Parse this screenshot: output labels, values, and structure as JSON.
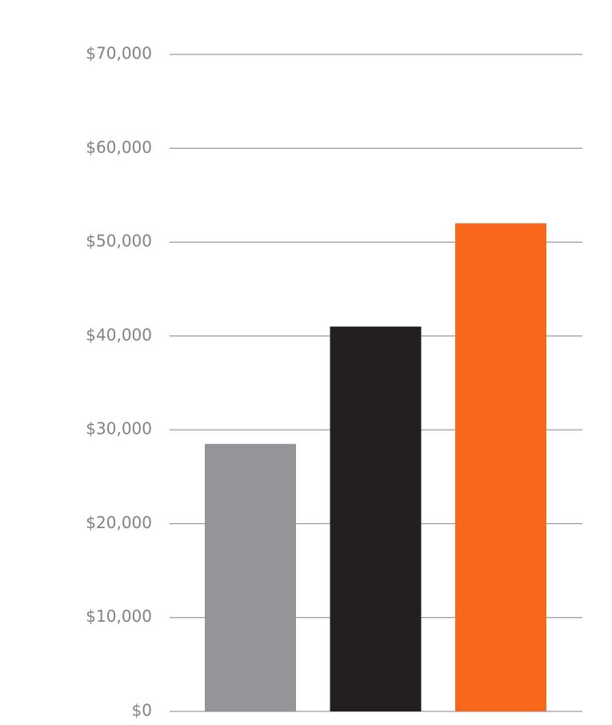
{
  "chart_data": {
    "type": "bar",
    "categories": [
      null,
      null,
      null
    ],
    "values": [
      28500,
      41000,
      52000
    ],
    "colors": [
      "#939598",
      "#231f20",
      "#f9671d"
    ],
    "ylim": [
      0,
      70000
    ],
    "yticks": [
      {
        "value": 0,
        "label": "$0"
      },
      {
        "value": 10000,
        "label": "$10,000"
      },
      {
        "value": 20000,
        "label": "$20,000"
      },
      {
        "value": 30000,
        "label": "$30,000"
      },
      {
        "value": 40000,
        "label": "$40,000"
      },
      {
        "value": 50000,
        "label": "$50,000"
      },
      {
        "value": 60000,
        "label": "$60,000"
      },
      {
        "value": 70000,
        "label": "$70,000"
      }
    ],
    "grid": true
  }
}
